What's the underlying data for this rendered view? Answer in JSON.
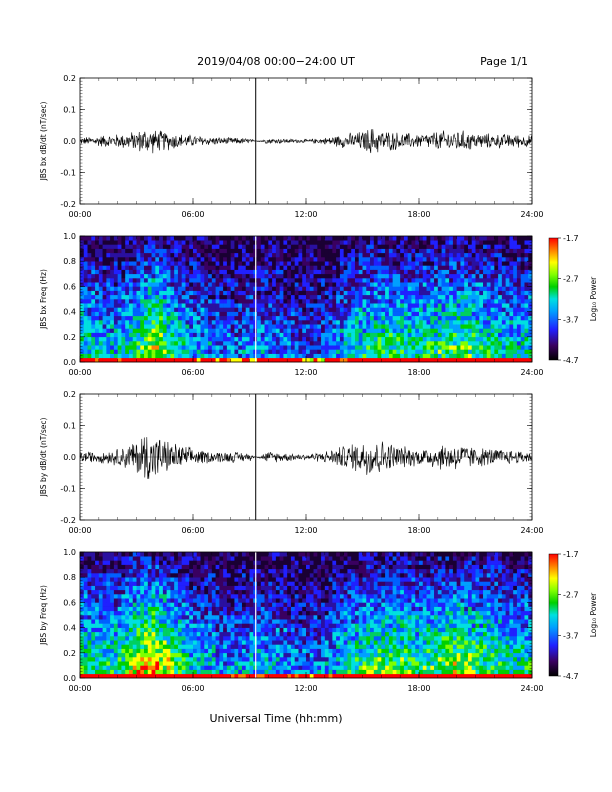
{
  "header": {
    "date_range": "2019/04/08  00:00−24:00 UT",
    "page": "Page 1/1"
  },
  "xaxis": {
    "label": "Universal Time (hh:mm)",
    "ticks": [
      "00:00",
      "06:00",
      "12:00",
      "18:00",
      "24:00"
    ],
    "range_hours": [
      0,
      24
    ]
  },
  "colorbar": {
    "label": "Log₁₀ Power",
    "ticks": [
      "-1.7",
      "-2.7",
      "-3.7",
      "-4.7"
    ],
    "range": [
      -4.7,
      -1.7
    ]
  },
  "data_gap_hour": 9.33,
  "chart_data": [
    {
      "type": "line",
      "ylabel": "JBS bx dB/dt (nT/sec)",
      "ylim": [
        -0.2,
        0.2
      ],
      "yticks": [
        "0.2",
        "0.1",
        "0.0",
        "-0.1",
        "-0.2"
      ],
      "series": [
        {
          "x_hours": [
            0,
            1,
            2,
            3,
            3.5,
            4,
            5,
            6,
            7,
            8,
            9,
            9.33,
            10,
            11,
            12,
            13,
            14,
            15,
            15.5,
            16,
            17,
            18,
            19,
            20,
            21,
            22,
            23,
            24
          ],
          "envelope": [
            0.012,
            0.02,
            0.025,
            0.035,
            0.05,
            0.04,
            0.03,
            0.02,
            0.015,
            0.012,
            0.01,
            0.0,
            0.01,
            0.008,
            0.006,
            0.012,
            0.025,
            0.035,
            0.05,
            0.04,
            0.03,
            0.025,
            0.035,
            0.04,
            0.03,
            0.025,
            0.025,
            0.02
          ]
        }
      ]
    },
    {
      "type": "heatmap",
      "ylabel": "JBS bx Freq (Hz)",
      "ylim": [
        0,
        1
      ],
      "yticks": [
        "1.0",
        "0.8",
        "0.6",
        "0.4",
        "0.2",
        "0.0"
      ],
      "colorbar_range": [
        -4.7,
        -1.7
      ],
      "activity_hours": [
        0,
        1,
        2,
        3,
        4,
        5,
        6,
        7,
        8,
        9,
        10,
        11,
        12,
        13,
        14,
        15,
        16,
        17,
        18,
        19,
        20,
        21,
        22,
        23,
        24
      ],
      "activity_level": [
        0.55,
        0.5,
        0.45,
        0.6,
        0.75,
        0.55,
        0.45,
        0.4,
        0.35,
        0.4,
        0.4,
        0.35,
        0.3,
        0.35,
        0.45,
        0.55,
        0.6,
        0.6,
        0.55,
        0.6,
        0.65,
        0.6,
        0.55,
        0.5,
        0.5
      ]
    },
    {
      "type": "line",
      "ylabel": "JBS by dB/dt (nT/sec)",
      "ylim": [
        -0.2,
        0.2
      ],
      "yticks": [
        "0.2",
        "0.1",
        "0.0",
        "-0.1",
        "-0.2"
      ],
      "series": [
        {
          "x_hours": [
            0,
            1,
            2,
            3,
            3.5,
            4,
            4.5,
            5,
            6,
            7,
            8,
            9,
            9.33,
            10,
            11,
            12,
            13,
            14,
            15,
            15.5,
            16,
            17,
            18,
            19,
            20,
            21,
            22,
            23,
            24
          ],
          "envelope": [
            0.02,
            0.02,
            0.03,
            0.06,
            0.1,
            0.08,
            0.06,
            0.05,
            0.03,
            0.02,
            0.02,
            0.015,
            0.0,
            0.02,
            0.015,
            0.01,
            0.02,
            0.04,
            0.06,
            0.08,
            0.06,
            0.04,
            0.03,
            0.045,
            0.05,
            0.035,
            0.03,
            0.025,
            0.02
          ]
        }
      ]
    },
    {
      "type": "heatmap",
      "ylabel": "JBS by Freq (Hz)",
      "ylim": [
        0,
        1
      ],
      "yticks": [
        "1.0",
        "0.8",
        "0.6",
        "0.4",
        "0.2",
        "0.0"
      ],
      "colorbar_range": [
        -4.7,
        -1.7
      ],
      "activity_hours": [
        0,
        1,
        2,
        3,
        4,
        5,
        6,
        7,
        8,
        9,
        10,
        11,
        12,
        13,
        14,
        15,
        16,
        17,
        18,
        19,
        20,
        21,
        22,
        23,
        24
      ],
      "activity_level": [
        0.6,
        0.55,
        0.55,
        0.75,
        0.85,
        0.65,
        0.5,
        0.45,
        0.4,
        0.45,
        0.45,
        0.4,
        0.35,
        0.4,
        0.5,
        0.6,
        0.65,
        0.65,
        0.6,
        0.65,
        0.7,
        0.65,
        0.6,
        0.55,
        0.55
      ]
    }
  ]
}
